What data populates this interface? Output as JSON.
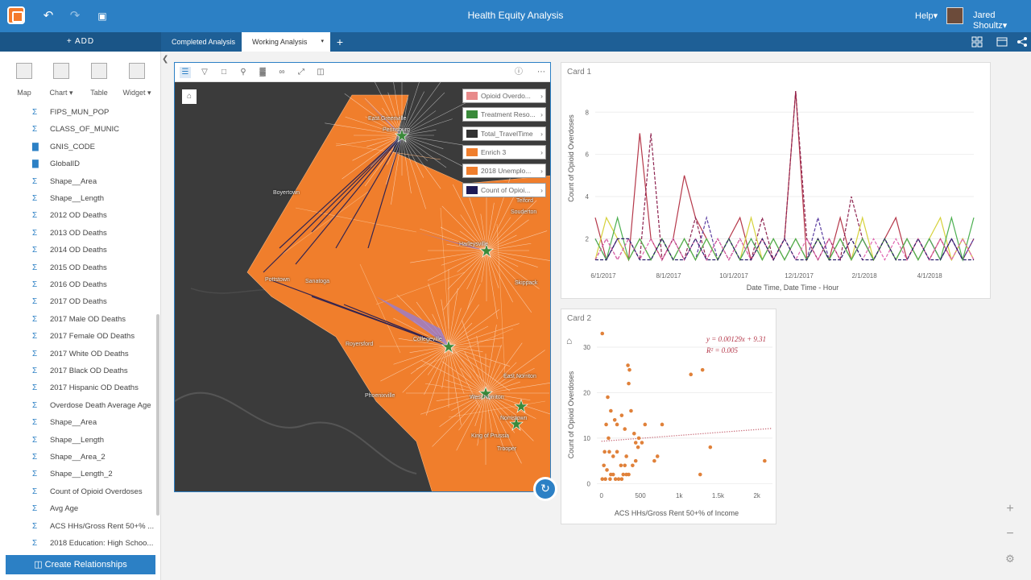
{
  "app": {
    "title": "Health Equity Analysis",
    "help_label": "Help▾",
    "user_name": "Jared Shoultz▾"
  },
  "toolbar": {
    "add_label": "+ ADD",
    "tabs": [
      {
        "label": "Completed Analysis"
      },
      {
        "label": "Working Analysis"
      }
    ],
    "caret": "▾",
    "new_tab": "+"
  },
  "sidebar": {
    "viz_buttons": [
      {
        "label": "Map"
      },
      {
        "label": "Chart ▾"
      },
      {
        "label": "Table"
      },
      {
        "label": "Widget ▾"
      }
    ],
    "fields": [
      {
        "icon": "Σ",
        "label": "FIPS_MUN_POP"
      },
      {
        "icon": "Σ",
        "label": "CLASS_OF_MUNIC"
      },
      {
        "icon": "▇",
        "label": "GNIS_CODE"
      },
      {
        "icon": "▇",
        "label": "GlobalID"
      },
      {
        "icon": "Σ",
        "label": "Shape__Area"
      },
      {
        "icon": "Σ",
        "label": "Shape__Length"
      },
      {
        "icon": "Σ",
        "label": "2012 OD Deaths"
      },
      {
        "icon": "Σ",
        "label": "2013 OD Deaths"
      },
      {
        "icon": "Σ",
        "label": "2014 OD Deaths"
      },
      {
        "icon": "Σ",
        "label": "2015 OD Deaths"
      },
      {
        "icon": "Σ",
        "label": "2016 OD Deaths"
      },
      {
        "icon": "Σ",
        "label": "2017 OD Deaths"
      },
      {
        "icon": "Σ",
        "label": "2017 Male OD Deaths"
      },
      {
        "icon": "Σ",
        "label": "2017 Female OD Deaths"
      },
      {
        "icon": "Σ",
        "label": "2017 White OD Deaths"
      },
      {
        "icon": "Σ",
        "label": "2017 Black OD Deaths"
      },
      {
        "icon": "Σ",
        "label": "2017 Hispanic OD Deaths"
      },
      {
        "icon": "Σ",
        "label": "Overdose Death Average Age"
      },
      {
        "icon": "Σ",
        "label": "Shape__Area"
      },
      {
        "icon": "Σ",
        "label": "Shape__Length"
      },
      {
        "icon": "Σ",
        "label": "Shape__Area_2"
      },
      {
        "icon": "Σ",
        "label": "Shape__Length_2"
      },
      {
        "icon": "Σ",
        "label": "Count of Opioid Overdoses"
      },
      {
        "icon": "Σ",
        "label": "Avg Age"
      },
      {
        "icon": "Σ",
        "label": "ACS HHs/Gross Rent 50+% ..."
      },
      {
        "icon": "Σ",
        "label": "2018 Education: High Schoo..."
      }
    ],
    "create_relationships": "Create Relationships"
  },
  "map": {
    "home_icon": "home-icon",
    "legend": [
      {
        "label": "Opioid Overdo...",
        "color": "#e88a8a"
      },
      {
        "label": "Treatment Reso...",
        "color": "#3a8a3a"
      },
      {
        "label": "Total_TravelTime",
        "color": "#333333"
      },
      {
        "label": "Enrich 3",
        "color": "#f07e2c"
      },
      {
        "label": "2018 Unemplo...",
        "color": "#f07e2c"
      },
      {
        "label": "Count of Opioi...",
        "color": "#1d1a55"
      }
    ],
    "place_labels": [
      {
        "label": "East Greenville"
      },
      {
        "label": "Pennsburg"
      },
      {
        "label": "Boyertown"
      },
      {
        "label": "Harleysville"
      },
      {
        "label": "Telford"
      },
      {
        "label": "Souderton"
      },
      {
        "label": "Pottstown"
      },
      {
        "label": "Sanatoga"
      },
      {
        "label": "Royersford"
      },
      {
        "label": "Collegeville"
      },
      {
        "label": "Phoenixville"
      },
      {
        "label": "East Norriton"
      },
      {
        "label": "West Norriton"
      },
      {
        "label": "Norristown"
      },
      {
        "label": "King of Prussia"
      },
      {
        "label": "Trooper"
      },
      {
        "label": "Skippack"
      }
    ],
    "legend_arrow": "›"
  },
  "card1": {
    "title": "Card 1",
    "chart_data": {
      "type": "line",
      "xlabel": "Date Time, Date Time - Hour",
      "ylabel": "Count of Opioid Overdoses",
      "x_ticks": [
        "6/1/2017",
        "8/1/2017",
        "10/1/2017",
        "12/1/2017",
        "2/1/2018",
        "4/1/2018"
      ],
      "y_ticks": [
        2,
        4,
        6,
        8
      ],
      "ylim": [
        0.6,
        9.5
      ],
      "series": [
        {
          "color": "#b5384a",
          "dashed": false,
          "values": [
            3,
            1,
            2,
            1,
            7,
            2,
            1,
            2,
            5,
            3,
            2,
            1,
            2,
            3,
            1,
            2,
            1,
            2,
            9,
            1,
            2,
            1,
            3,
            1,
            2,
            1,
            2,
            3,
            1,
            2,
            1,
            2,
            1,
            2,
            1
          ]
        },
        {
          "color": "#8e2450",
          "dashed": true,
          "values": [
            1,
            2,
            1,
            2,
            1,
            7,
            1,
            2,
            1,
            3,
            1,
            2,
            1,
            2,
            1,
            3,
            1,
            2,
            9,
            2,
            1,
            2,
            1,
            4,
            2,
            1,
            2,
            1,
            2,
            1,
            2,
            1,
            2,
            1,
            2
          ]
        },
        {
          "color": "#5a3da0",
          "dashed": true,
          "values": [
            2,
            1,
            2,
            1,
            2,
            1,
            2,
            1,
            2,
            1,
            3,
            1,
            2,
            1,
            2,
            1,
            2,
            1,
            2,
            1,
            3,
            1,
            2,
            1,
            2,
            1,
            2,
            1,
            2,
            1,
            2,
            1,
            2,
            1,
            2
          ]
        },
        {
          "color": "#d6d23c",
          "dashed": false,
          "values": [
            1,
            3,
            2,
            1,
            2,
            1,
            2,
            1,
            2,
            1,
            2,
            1,
            2,
            1,
            3,
            1,
            2,
            1,
            2,
            1,
            2,
            1,
            2,
            1,
            3,
            1,
            2,
            1,
            2,
            1,
            2,
            3,
            1,
            2,
            1
          ]
        },
        {
          "color": "#4caf50",
          "dashed": false,
          "values": [
            2,
            1,
            3,
            1,
            2,
            1,
            2,
            1,
            2,
            1,
            2,
            1,
            2,
            1,
            2,
            1,
            2,
            1,
            2,
            1,
            2,
            1,
            2,
            1,
            2,
            1,
            2,
            1,
            2,
            1,
            2,
            1,
            3,
            1,
            3
          ]
        },
        {
          "color": "#e066b0",
          "dashed": true,
          "values": [
            1,
            2,
            1,
            2,
            1,
            2,
            1,
            2,
            1,
            2,
            1,
            2,
            1,
            2,
            1,
            2,
            1,
            2,
            1,
            2,
            1,
            2,
            1,
            2,
            1,
            2,
            1,
            2,
            1,
            2,
            1,
            2,
            1,
            2,
            1
          ]
        },
        {
          "color": "#2a1f6b",
          "dashed": true,
          "values": [
            1,
            1,
            2,
            2,
            1,
            1,
            2,
            1,
            1,
            2,
            1,
            1,
            2,
            1,
            1,
            2,
            1,
            2,
            1,
            1,
            2,
            1,
            1,
            2,
            1,
            1,
            2,
            1,
            1,
            2,
            1,
            1,
            2,
            1,
            1
          ]
        }
      ]
    }
  },
  "card2": {
    "title": "Card 2",
    "home_icon": "home-icon",
    "equation": "y = 0.00129x + 9.31",
    "r2": "R² = 0.005",
    "chart_data": {
      "type": "scatter",
      "xlabel": "ACS HHs/Gross Rent 50+% of Income",
      "ylabel": "Count of Opioid Overdoses",
      "x_tick_labels": [
        "0",
        "500",
        "1k",
        "1.5k",
        "2k"
      ],
      "x_tick_values": [
        0,
        500,
        1000,
        1500,
        2000
      ],
      "y_ticks": [
        0,
        10,
        20,
        30
      ],
      "xlim": [
        -60,
        2200
      ],
      "ylim": [
        -1,
        33
      ],
      "trend": {
        "slope": 0.00129,
        "intercept": 9.31
      },
      "points": [
        [
          10,
          33
        ],
        [
          80,
          19
        ],
        [
          120,
          16
        ],
        [
          170,
          14
        ],
        [
          200,
          13
        ],
        [
          260,
          15
        ],
        [
          60,
          13
        ],
        [
          90,
          10
        ],
        [
          40,
          7
        ],
        [
          100,
          7
        ],
        [
          150,
          6
        ],
        [
          200,
          7
        ],
        [
          250,
          4
        ],
        [
          300,
          4
        ],
        [
          30,
          4
        ],
        [
          70,
          3
        ],
        [
          120,
          2
        ],
        [
          180,
          1
        ],
        [
          220,
          1
        ],
        [
          260,
          1
        ],
        [
          340,
          26
        ],
        [
          360,
          25
        ],
        [
          350,
          22
        ],
        [
          380,
          16
        ],
        [
          420,
          11
        ],
        [
          440,
          9
        ],
        [
          480,
          10
        ],
        [
          520,
          9
        ],
        [
          470,
          8
        ],
        [
          560,
          13
        ],
        [
          300,
          12
        ],
        [
          320,
          6
        ],
        [
          350,
          2
        ],
        [
          400,
          4
        ],
        [
          440,
          5
        ],
        [
          680,
          5
        ],
        [
          720,
          6
        ],
        [
          780,
          13
        ],
        [
          1150,
          24
        ],
        [
          1300,
          25
        ],
        [
          1400,
          8
        ],
        [
          1270,
          2
        ],
        [
          2100,
          5
        ],
        [
          50,
          1
        ],
        [
          10,
          1
        ],
        [
          110,
          1
        ],
        [
          150,
          2
        ],
        [
          280,
          2
        ],
        [
          320,
          2
        ]
      ]
    }
  }
}
